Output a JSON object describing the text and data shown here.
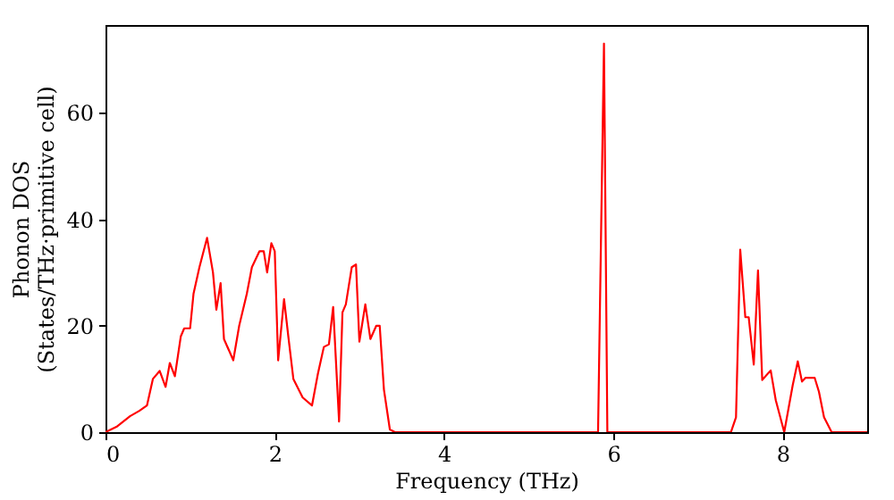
{
  "chart_data": {
    "type": "line",
    "xlabel": "Frequency (THz)",
    "ylabel": "Phonon DOS\n(States/THz·primitive cell)",
    "xlim": [
      0,
      9
    ],
    "ylim": [
      0,
      76.5
    ],
    "xticks": [
      0,
      2,
      4,
      6,
      8
    ],
    "yticks": [
      0,
      20,
      40,
      60
    ],
    "grid": false,
    "marker": "none",
    "line_style": "solid",
    "series": [
      {
        "color": "#ff0000",
        "x": [
          0,
          0.13,
          0.29,
          0.4,
          0.49,
          0.56,
          0.64,
          0.71,
          0.76,
          0.82,
          0.89,
          0.93,
          1.0,
          1.04,
          1.11,
          1.2,
          1.27,
          1.31,
          1.36,
          1.4,
          1.51,
          1.58,
          1.67,
          1.73,
          1.82,
          1.87,
          1.91,
          1.96,
          2.0,
          2.04,
          2.11,
          2.16,
          2.22,
          2.33,
          2.44,
          2.51,
          2.58,
          2.64,
          2.69,
          2.76,
          2.8,
          2.84,
          2.91,
          2.96,
          3.0,
          3.07,
          3.13,
          3.2,
          3.24,
          3.29,
          3.36,
          3.42,
          5.82,
          5.89,
          5.93,
          7.39,
          7.45,
          7.5,
          7.56,
          7.6,
          7.66,
          7.71,
          7.76,
          7.86,
          7.92,
          8.02,
          8.12,
          8.18,
          8.23,
          8.27,
          8.38,
          8.43,
          8.49,
          8.58,
          9.0
        ],
        "values": [
          0,
          1,
          3,
          4,
          5,
          10,
          11.5,
          8.5,
          13,
          10.5,
          18,
          19.5,
          19.5,
          26,
          31,
          36.5,
          30,
          23,
          28,
          17.5,
          13.5,
          20,
          26,
          31,
          34,
          34,
          30,
          35.5,
          34,
          13.5,
          25,
          18,
          10,
          6.5,
          5,
          11,
          16,
          16.5,
          23.5,
          2,
          22.5,
          24,
          31,
          31.5,
          17,
          24,
          17.5,
          20,
          20,
          8,
          0.5,
          0,
          0,
          73,
          0,
          0,
          2.8,
          34.3,
          21.6,
          21.6,
          12.7,
          30.4,
          9.8,
          11.6,
          6,
          0,
          8.8,
          13.3,
          9.5,
          10.2,
          10.2,
          7.6,
          2.8,
          0,
          0
        ]
      }
    ]
  }
}
